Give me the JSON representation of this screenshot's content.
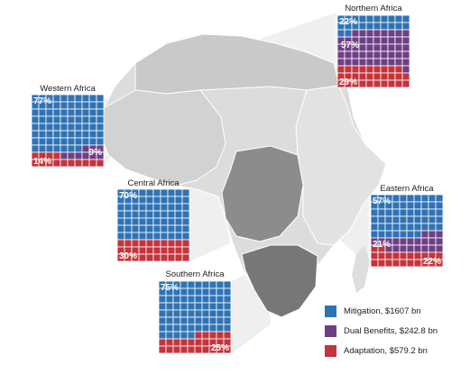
{
  "chart_data": {
    "type": "waffle",
    "colors": {
      "mitigation": "#2f73b5",
      "dual_benefits": "#6f3f86",
      "adaptation": "#c4343c",
      "grid_line": "#ffffff",
      "map_land": "#d9d9d9",
      "map_highlight": "#8c8c8c"
    },
    "legend": [
      {
        "key": "mitigation",
        "label": "Mitigation, $1607 bn"
      },
      {
        "key": "dual_benefits",
        "label": "Dual Benefits, $242.8 bn"
      },
      {
        "key": "adaptation",
        "label": "Adaptation, $579.2 bn"
      }
    ],
    "regions": [
      {
        "name": "Northern Africa",
        "mitigation": 22,
        "dual_benefits": 57,
        "adaptation": 29,
        "labels": {
          "mitigation": "22%",
          "dual_benefits": "57%",
          "adaptation": "29%"
        }
      },
      {
        "name": "Western Africa",
        "mitigation": 77,
        "dual_benefits": 9,
        "adaptation": 14,
        "labels": {
          "mitigation": "77%",
          "dual_benefits": "9%",
          "adaptation": "14%"
        }
      },
      {
        "name": "Central Africa",
        "mitigation": 70,
        "dual_benefits": 0,
        "adaptation": 30,
        "labels": {
          "mitigation": "70%",
          "dual_benefits": "",
          "adaptation": "30%"
        }
      },
      {
        "name": "Eastern Africa",
        "mitigation": 57,
        "dual_benefits": 21,
        "adaptation": 22,
        "labels": {
          "mitigation": "57%",
          "dual_benefits": "21%",
          "adaptation": "22%"
        }
      },
      {
        "name": "Southern Africa",
        "mitigation": 75,
        "dual_benefits": 0,
        "adaptation": 25,
        "labels": {
          "mitigation": "75%",
          "dual_benefits": "",
          "adaptation": "25%"
        }
      }
    ]
  }
}
